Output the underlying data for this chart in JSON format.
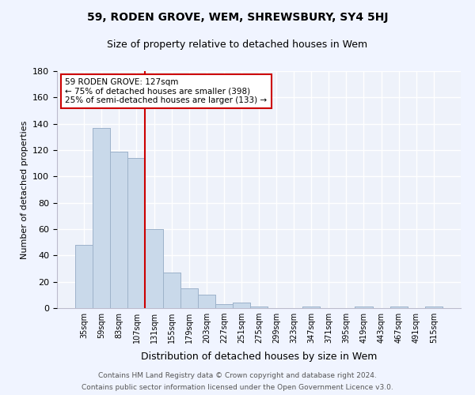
{
  "title": "59, RODEN GROVE, WEM, SHREWSBURY, SY4 5HJ",
  "subtitle": "Size of property relative to detached houses in Wem",
  "xlabel": "Distribution of detached houses by size in Wem",
  "ylabel": "Number of detached properties",
  "bar_color": "#c9d9ea",
  "bar_edge_color": "#9ab0c8",
  "background_color": "#eef2fa",
  "grid_color": "#ffffff",
  "categories": [
    "35sqm",
    "59sqm",
    "83sqm",
    "107sqm",
    "131sqm",
    "155sqm",
    "179sqm",
    "203sqm",
    "227sqm",
    "251sqm",
    "275sqm",
    "299sqm",
    "323sqm",
    "347sqm",
    "371sqm",
    "395sqm",
    "419sqm",
    "443sqm",
    "467sqm",
    "491sqm",
    "515sqm"
  ],
  "values": [
    48,
    137,
    119,
    114,
    60,
    27,
    15,
    10,
    3,
    4,
    1,
    0,
    0,
    1,
    0,
    0,
    1,
    0,
    1,
    0,
    1
  ],
  "vline_color": "#cc0000",
  "annotation_text": "59 RODEN GROVE: 127sqm\n← 75% of detached houses are smaller (398)\n25% of semi-detached houses are larger (133) →",
  "annotation_box_color": "#ffffff",
  "annotation_box_edge_color": "#cc0000",
  "ylim": [
    0,
    180
  ],
  "yticks": [
    0,
    20,
    40,
    60,
    80,
    100,
    120,
    140,
    160,
    180
  ],
  "footer_line1": "Contains HM Land Registry data © Crown copyright and database right 2024.",
  "footer_line2": "Contains public sector information licensed under the Open Government Licence v3.0."
}
